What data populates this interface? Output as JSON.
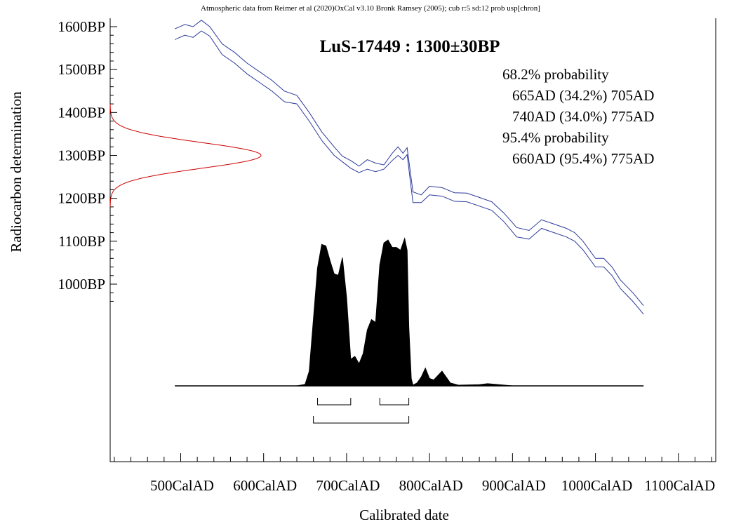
{
  "chart_data": {
    "type": "line",
    "header": "Atmospheric data from Reimer et al (2020)OxCal v3.10 Bronk Ramsey (2005); cub r:5 sd:12 prob usp[chron]",
    "title": "LuS-17449 : 1300±30BP",
    "xlabel": "Calibrated date",
    "ylabel": "Radiocarbon determination",
    "x_ticks": [
      "500CalAD",
      "600CalAD",
      "700CalAD",
      "800CalAD",
      "900CalAD",
      "1000CalAD",
      "1100CalAD"
    ],
    "x_tick_values": [
      500,
      600,
      700,
      800,
      900,
      1000,
      1100
    ],
    "y_ticks": [
      "1600BP",
      "1500BP",
      "1400BP",
      "1300BP",
      "1200BP",
      "1100BP",
      "1000BP"
    ],
    "y_tick_values": [
      1600,
      1500,
      1400,
      1300,
      1200,
      1100,
      1000
    ],
    "xlim": [
      415,
      1145
    ],
    "ylim": [
      760,
      1620
    ],
    "calibration_curve": {
      "color": "#2b3a9a",
      "x": [
        493,
        505,
        515,
        525,
        535,
        550,
        565,
        580,
        595,
        610,
        625,
        640,
        655,
        670,
        685,
        695,
        705,
        715,
        725,
        735,
        745,
        755,
        762,
        768,
        773,
        780,
        790,
        800,
        815,
        830,
        845,
        860,
        875,
        890,
        905,
        920,
        935,
        950,
        965,
        975,
        985,
        1000,
        1010,
        1020,
        1030,
        1045,
        1058
      ],
      "upper": [
        1595,
        1605,
        1600,
        1615,
        1600,
        1560,
        1540,
        1515,
        1495,
        1475,
        1450,
        1440,
        1400,
        1355,
        1320,
        1298,
        1288,
        1275,
        1290,
        1282,
        1278,
        1305,
        1320,
        1305,
        1318,
        1215,
        1208,
        1228,
        1225,
        1213,
        1212,
        1202,
        1192,
        1165,
        1132,
        1125,
        1150,
        1140,
        1130,
        1120,
        1100,
        1060,
        1060,
        1040,
        1010,
        980,
        950
      ],
      "lower": [
        1570,
        1580,
        1575,
        1590,
        1578,
        1535,
        1515,
        1490,
        1470,
        1450,
        1425,
        1420,
        1380,
        1335,
        1300,
        1285,
        1270,
        1260,
        1268,
        1262,
        1268,
        1288,
        1300,
        1290,
        1302,
        1190,
        1190,
        1208,
        1205,
        1193,
        1192,
        1182,
        1172,
        1145,
        1110,
        1105,
        1130,
        1120,
        1110,
        1100,
        1080,
        1040,
        1040,
        1020,
        990,
        960,
        930
      ]
    },
    "radiocarbon_date": {
      "mean_bp": 1300,
      "sd_bp": 30,
      "color": "#cc0000"
    },
    "posterior": {
      "color": "#000000",
      "x": [
        493,
        640,
        650,
        655,
        660,
        665,
        670,
        675,
        680,
        685,
        690,
        695,
        700,
        705,
        710,
        715,
        720,
        725,
        730,
        735,
        740,
        745,
        750,
        755,
        760,
        765,
        770,
        773,
        775,
        778,
        780,
        785,
        790,
        795,
        800,
        805,
        810,
        815,
        820,
        825,
        835,
        860,
        870,
        880,
        900,
        1058
      ],
      "density": [
        0,
        0,
        0.01,
        0.1,
        0.45,
        0.8,
        0.96,
        0.95,
        0.85,
        0.76,
        0.75,
        0.87,
        0.6,
        0.18,
        0.2,
        0.15,
        0.22,
        0.38,
        0.45,
        0.43,
        0.82,
        0.97,
        0.99,
        0.94,
        0.94,
        0.92,
        1.0,
        0.92,
        0.4,
        0.05,
        0.005,
        0.02,
        0.06,
        0.12,
        0.05,
        0.04,
        0.07,
        0.1,
        0.06,
        0.02,
        0.005,
        0.008,
        0.015,
        0.01,
        0,
        0
      ]
    },
    "prob_68": {
      "label": "68.2% probability",
      "ranges": [
        [
          665,
          705
        ],
        [
          740,
          775
        ]
      ]
    },
    "prob_95": {
      "label": "95.4% probability",
      "ranges": [
        [
          660,
          775
        ]
      ]
    },
    "annotations": [
      "68.2% probability",
      "665AD (34.2%) 705AD",
      "740AD (34.0%) 775AD",
      "95.4% probability",
      "660AD (95.4%) 775AD"
    ]
  }
}
